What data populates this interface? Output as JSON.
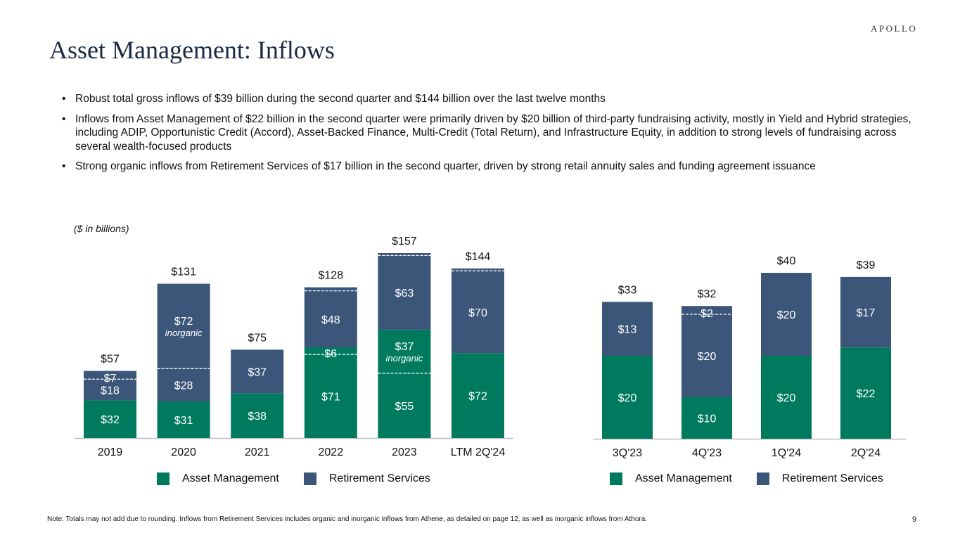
{
  "logo": "APOLLO",
  "title": "Asset Management: Inflows",
  "bullets": [
    "Robust total gross inflows of $39 billion during the second quarter and $144 billion over the last twelve months",
    "Inflows from Asset Management of $22 billion in the second quarter were primarily driven by $20 billion of third-party fundraising activity, mostly in Yield and Hybrid strategies, including ADIP, Opportunistic Credit (Accord), Asset-Backed Finance, Multi-Credit (Total Return), and Infrastructure Equity, in addition to strong levels of fundraising across several wealth-focused products",
    "Strong organic inflows from Retirement Services of $17 billion in the second quarter, driven by strong retail annuity sales and funding agreement issuance"
  ],
  "units_label": "($ in billions)",
  "colors": {
    "asset_management": "#007a5e",
    "retirement_services": "#3b5678",
    "divider": "#ffffff"
  },
  "chart_data": [
    {
      "type": "bar",
      "stacked": true,
      "categories": [
        "2019",
        "2020",
        "2021",
        "2022",
        "2023",
        "LTM 2Q'24"
      ],
      "ylim": [
        0,
        157
      ],
      "legend": [
        "Asset Management",
        "Retirement Services"
      ],
      "legend_placement": "bottom",
      "bars": [
        {
          "total": "$57",
          "segments": [
            {
              "series": "Asset Management",
              "value": 32,
              "label": "$32"
            },
            {
              "series": "Retirement Services",
              "value": 18,
              "label": "$18"
            },
            {
              "series": "Retirement Services",
              "value": 7,
              "label": "$7",
              "inorganic": true
            }
          ]
        },
        {
          "total": "$131",
          "segments": [
            {
              "series": "Asset Management",
              "value": 31,
              "label": "$31"
            },
            {
              "series": "Retirement Services",
              "value": 28,
              "label": "$28"
            },
            {
              "series": "Retirement Services",
              "value": 72,
              "label": "$72",
              "sublabel": "inorganic",
              "inorganic": true
            }
          ]
        },
        {
          "total": "$75",
          "segments": [
            {
              "series": "Asset Management",
              "value": 38,
              "label": "$38"
            },
            {
              "series": "Retirement Services",
              "value": 37,
              "label": "$37"
            }
          ]
        },
        {
          "total": "$128",
          "segments": [
            {
              "series": "Asset Management",
              "value": 71,
              "label": "$71"
            },
            {
              "series": "Asset Management",
              "value": 6,
              "label": "$6",
              "inorganic": true
            },
            {
              "series": "Retirement Services",
              "value": 48,
              "label": "$48"
            },
            {
              "series": "Retirement Services",
              "value": 3,
              "label": "",
              "inorganic": true
            }
          ]
        },
        {
          "total": "$157",
          "segments": [
            {
              "series": "Asset Management",
              "value": 55,
              "label": "$55"
            },
            {
              "series": "Asset Management",
              "value": 37,
              "label": "$37",
              "sublabel": "inorganic",
              "inorganic": true
            },
            {
              "series": "Retirement Services",
              "value": 63,
              "label": "$63"
            },
            {
              "series": "Retirement Services",
              "value": 2,
              "label": "",
              "inorganic": true
            }
          ]
        },
        {
          "total": "$144",
          "segments": [
            {
              "series": "Asset Management",
              "value": 72,
              "label": "$72"
            },
            {
              "series": "Retirement Services",
              "value": 70,
              "label": "$70"
            },
            {
              "series": "Retirement Services",
              "value": 2,
              "label": "",
              "inorganic": true
            }
          ]
        }
      ]
    },
    {
      "type": "bar",
      "stacked": true,
      "categories": [
        "3Q'23",
        "4Q'23",
        "1Q'24",
        "2Q'24"
      ],
      "ylim": [
        0,
        40
      ],
      "legend": [
        "Asset Management",
        "Retirement Services"
      ],
      "legend_placement": "bottom",
      "bars": [
        {
          "total": "$33",
          "segments": [
            {
              "series": "Asset Management",
              "value": 20,
              "label": "$20"
            },
            {
              "series": "Retirement Services",
              "value": 13,
              "label": "$13"
            }
          ]
        },
        {
          "total": "$32",
          "segments": [
            {
              "series": "Asset Management",
              "value": 10,
              "label": "$10"
            },
            {
              "series": "Retirement Services",
              "value": 20,
              "label": "$20"
            },
            {
              "series": "Retirement Services",
              "value": 2,
              "label": "$2",
              "inorganic": true
            }
          ]
        },
        {
          "total": "$40",
          "segments": [
            {
              "series": "Asset Management",
              "value": 20,
              "label": "$20"
            },
            {
              "series": "Retirement Services",
              "value": 20,
              "label": "$20"
            }
          ]
        },
        {
          "total": "$39",
          "segments": [
            {
              "series": "Asset Management",
              "value": 22,
              "label": "$22"
            },
            {
              "series": "Retirement Services",
              "value": 17,
              "label": "$17"
            }
          ]
        }
      ]
    }
  ],
  "note": "Note: Totals may not add due to rounding. Inflows from Retirement Services includes organic and inorganic inflows from Athene, as detailed on page 12, as well as inorganic inflows from Athora.",
  "page_number": "9"
}
